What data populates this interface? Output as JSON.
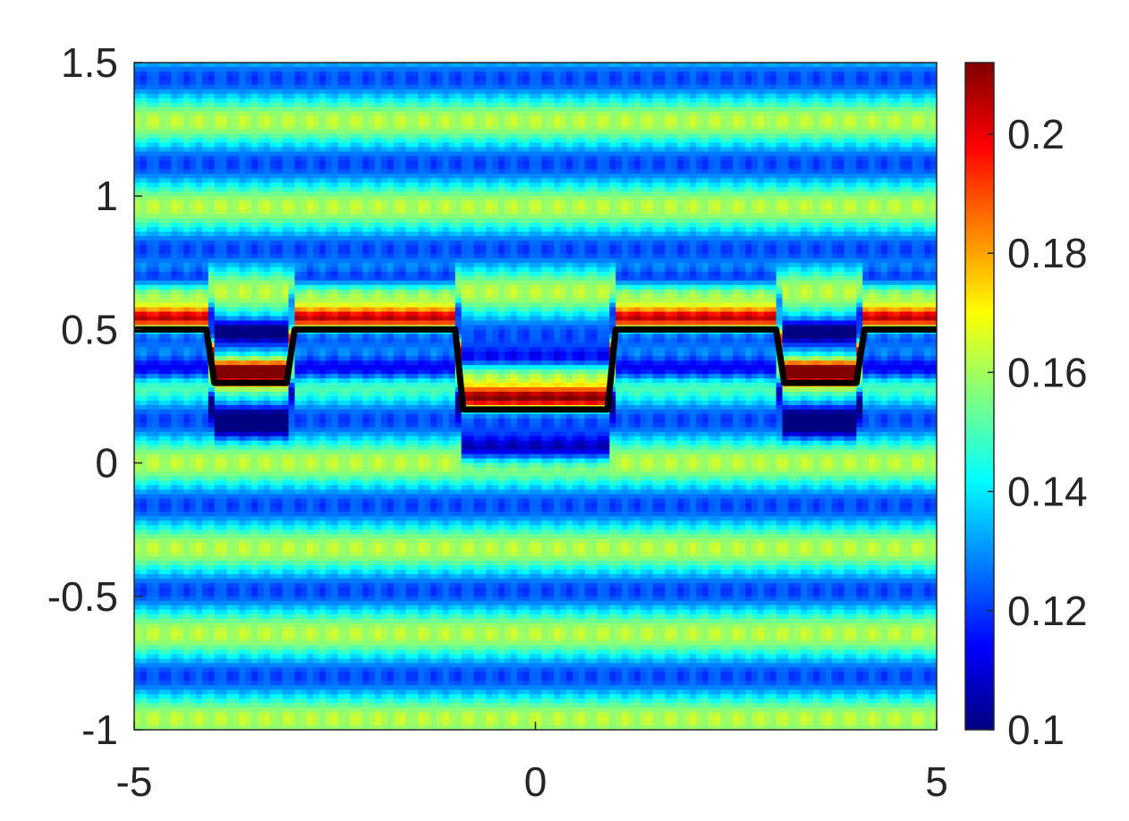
{
  "chart_data": {
    "type": "heatmap",
    "title": "",
    "xlabel": "",
    "ylabel": "",
    "xlim": [
      -5,
      5
    ],
    "ylim": [
      -1,
      1.5
    ],
    "x_ticks": [
      -5,
      0,
      5
    ],
    "y_ticks": [
      -1,
      -0.5,
      0,
      0.5,
      1,
      1.5
    ],
    "x_tick_labels": [
      "-5",
      "0",
      "5"
    ],
    "y_tick_labels": [
      "-1",
      "-0.5",
      "0",
      "0.5",
      "1",
      "1.5"
    ],
    "colorbar": {
      "colormap": "jet",
      "clim": [
        0.1,
        0.212
      ],
      "ticks": [
        0.1,
        0.12,
        0.14,
        0.16,
        0.18,
        0.2
      ],
      "tick_labels": [
        "0.1",
        "0.12",
        "0.14",
        "0.16",
        "0.18",
        "0.2"
      ]
    },
    "field_description": "horizontal banded interference field; intensity peaks (~0.21) just above the step profile, minima (~0.1) below the lowered segments",
    "series": [
      {
        "type": "line",
        "color": "#000000",
        "x": [
          -5,
          -4.1,
          -4.0,
          -3.1,
          -3.0,
          -1.0,
          -0.9,
          0.9,
          1.0,
          3.0,
          3.1,
          4.0,
          4.1,
          5
        ],
        "y": [
          0.5,
          0.5,
          0.3,
          0.3,
          0.5,
          0.5,
          0.2,
          0.2,
          0.5,
          0.5,
          0.3,
          0.3,
          0.5,
          0.5
        ]
      }
    ],
    "grid": false,
    "legend": "none"
  }
}
